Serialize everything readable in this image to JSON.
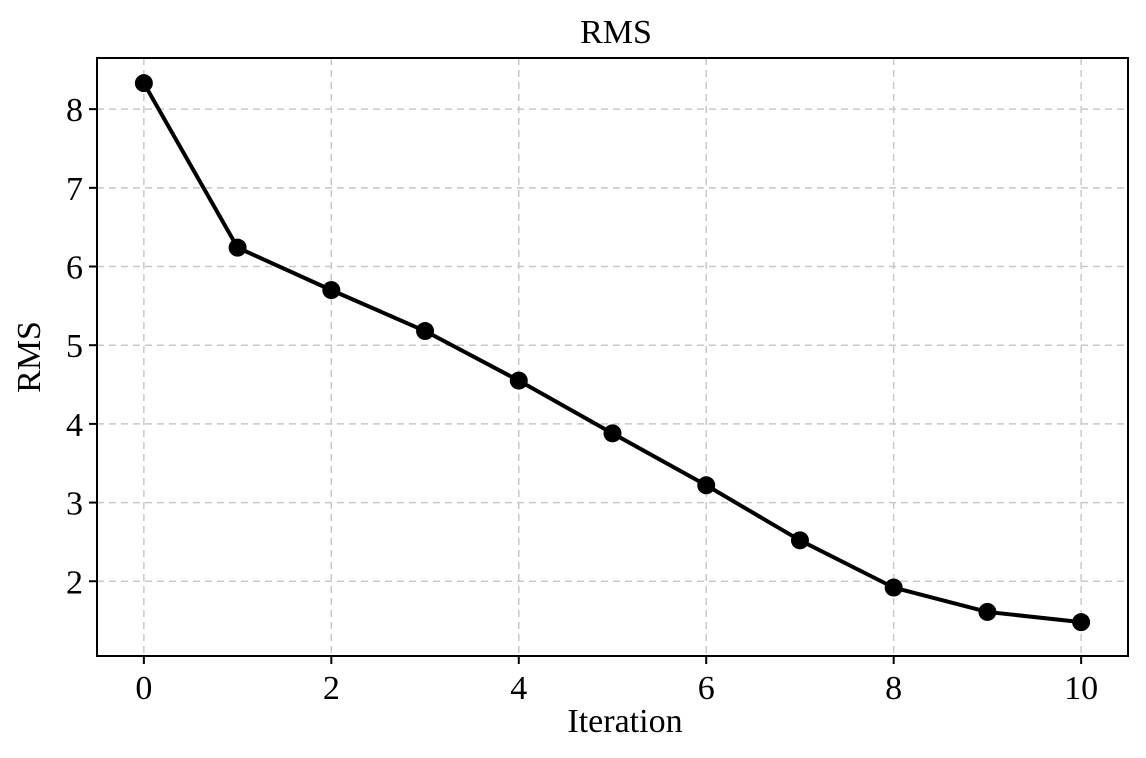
{
  "chart_data": {
    "type": "line",
    "title": "RMS",
    "xlabel": "Iteration",
    "ylabel": "RMS",
    "xlim": [
      -0.5,
      10.5
    ],
    "ylim": [
      1.05,
      8.65
    ],
    "xticks": [
      0,
      2,
      4,
      6,
      8,
      10
    ],
    "yticks": [
      2,
      3,
      4,
      5,
      6,
      7,
      8
    ],
    "grid": true,
    "line_color": "#000000",
    "marker": "circle",
    "x": [
      0,
      1,
      2,
      3,
      4,
      5,
      6,
      7,
      8,
      9,
      10
    ],
    "series": [
      {
        "values": [
          8.33,
          6.24,
          5.7,
          5.18,
          4.55,
          3.88,
          3.22,
          2.52,
          1.92,
          1.61,
          1.48
        ]
      }
    ]
  }
}
